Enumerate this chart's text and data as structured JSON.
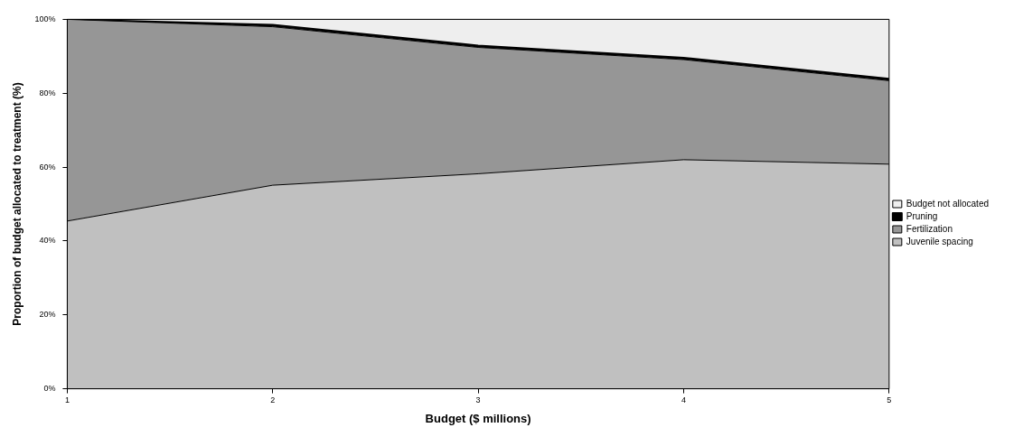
{
  "chart_data": {
    "type": "area",
    "stacked": true,
    "xlabel": "Budget ($ millions)",
    "ylabel": "Proportion of budget allocated to treatment (%)",
    "x": [
      1,
      2,
      3,
      4,
      5
    ],
    "xlim": [
      1,
      5
    ],
    "xticks": [
      1,
      2,
      3,
      4,
      5
    ],
    "ylim": [
      0,
      100
    ],
    "yticks": [
      {
        "value": 0,
        "label": "0%"
      },
      {
        "value": 20,
        "label": "20%"
      },
      {
        "value": 40,
        "label": "40%"
      },
      {
        "value": 60,
        "label": "60%"
      },
      {
        "value": 80,
        "label": "80%"
      },
      {
        "value": 100,
        "label": "100%"
      }
    ],
    "series": [
      {
        "name": "Juvenile spacing",
        "color": "#c0c0c0",
        "values": [
          45.4,
          55.1,
          58.2,
          62.0,
          60.8
        ]
      },
      {
        "name": "Fertilization",
        "color": "#969696",
        "values": [
          54.6,
          42.9,
          34.2,
          27.1,
          22.6
        ]
      },
      {
        "name": "Pruning",
        "color": "#000000",
        "values": [
          0,
          0.5,
          0.5,
          0.5,
          0.5
        ]
      },
      {
        "name": "Budget not allocated",
        "color": "#eeeeee",
        "values": [
          0,
          1.5,
          7.1,
          10.4,
          16.1
        ]
      }
    ],
    "legend": "right",
    "grid": false
  }
}
